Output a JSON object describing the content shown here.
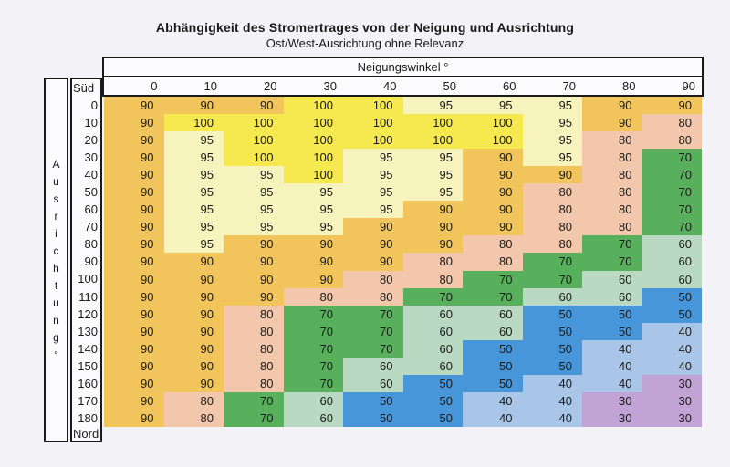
{
  "chart_data": {
    "type": "heatmap",
    "title": "Abhängigkeit des Stromertrages von der Neigung und Ausrichtung",
    "subtitle": "Ost/West-Ausrichtung ohne Relevanz",
    "xlabel": "Neigungswinkel °",
    "ylabel": "Ausrichtung °",
    "ylabel_letters": [
      "A",
      "u",
      "s",
      "r",
      "i",
      "c",
      "h",
      "t",
      "u",
      "n",
      "g",
      "°"
    ],
    "x_ticks": [
      "0",
      "10",
      "20",
      "30",
      "40",
      "50",
      "60",
      "70",
      "80",
      "90"
    ],
    "y_top_label": "Süd",
    "y_ticks": [
      "0",
      "10",
      "20",
      "30",
      "40",
      "50",
      "60",
      "70",
      "80",
      "90",
      "100",
      "110",
      "120",
      "130",
      "140",
      "150",
      "160",
      "170",
      "180"
    ],
    "y_bottom_label": "Nord",
    "legend_position": "none",
    "value_colors": {
      "100": "#f5e94f",
      "95": "#f7f3bd",
      "90": "#f2c45c",
      "80": "#f2c7ac",
      "70": "#58b05c",
      "60": "#bad9c2",
      "50": "#4896da",
      "40": "#a9c6e8",
      "30": "#c2a3d5"
    },
    "grid": [
      [
        90,
        90,
        90,
        100,
        100,
        95,
        95,
        95,
        90,
        90
      ],
      [
        90,
        100,
        100,
        100,
        100,
        100,
        100,
        95,
        90,
        80
      ],
      [
        90,
        95,
        100,
        100,
        100,
        100,
        100,
        95,
        80,
        80
      ],
      [
        90,
        95,
        100,
        100,
        95,
        95,
        90,
        95,
        80,
        70
      ],
      [
        90,
        95,
        95,
        100,
        95,
        95,
        90,
        90,
        80,
        70
      ],
      [
        90,
        95,
        95,
        95,
        95,
        95,
        90,
        80,
        80,
        70
      ],
      [
        90,
        95,
        95,
        95,
        95,
        90,
        90,
        80,
        80,
        70
      ],
      [
        90,
        95,
        95,
        95,
        90,
        90,
        90,
        80,
        80,
        70
      ],
      [
        90,
        95,
        90,
        90,
        90,
        90,
        80,
        80,
        70,
        60
      ],
      [
        90,
        90,
        90,
        90,
        90,
        80,
        80,
        70,
        70,
        60
      ],
      [
        90,
        90,
        90,
        90,
        80,
        80,
        70,
        70,
        60,
        60
      ],
      [
        90,
        90,
        90,
        80,
        80,
        70,
        70,
        60,
        60,
        50
      ],
      [
        90,
        90,
        80,
        70,
        70,
        60,
        60,
        50,
        50,
        50
      ],
      [
        90,
        90,
        80,
        70,
        70,
        60,
        60,
        50,
        50,
        40
      ],
      [
        90,
        90,
        80,
        70,
        70,
        60,
        50,
        50,
        40,
        40
      ],
      [
        90,
        90,
        80,
        70,
        60,
        60,
        50,
        50,
        40,
        40
      ],
      [
        90,
        90,
        80,
        70,
        60,
        50,
        50,
        40,
        40,
        30
      ],
      [
        90,
        80,
        70,
        60,
        50,
        50,
        40,
        40,
        30,
        30
      ],
      [
        90,
        80,
        70,
        60,
        50,
        50,
        40,
        40,
        30,
        30
      ]
    ]
  }
}
